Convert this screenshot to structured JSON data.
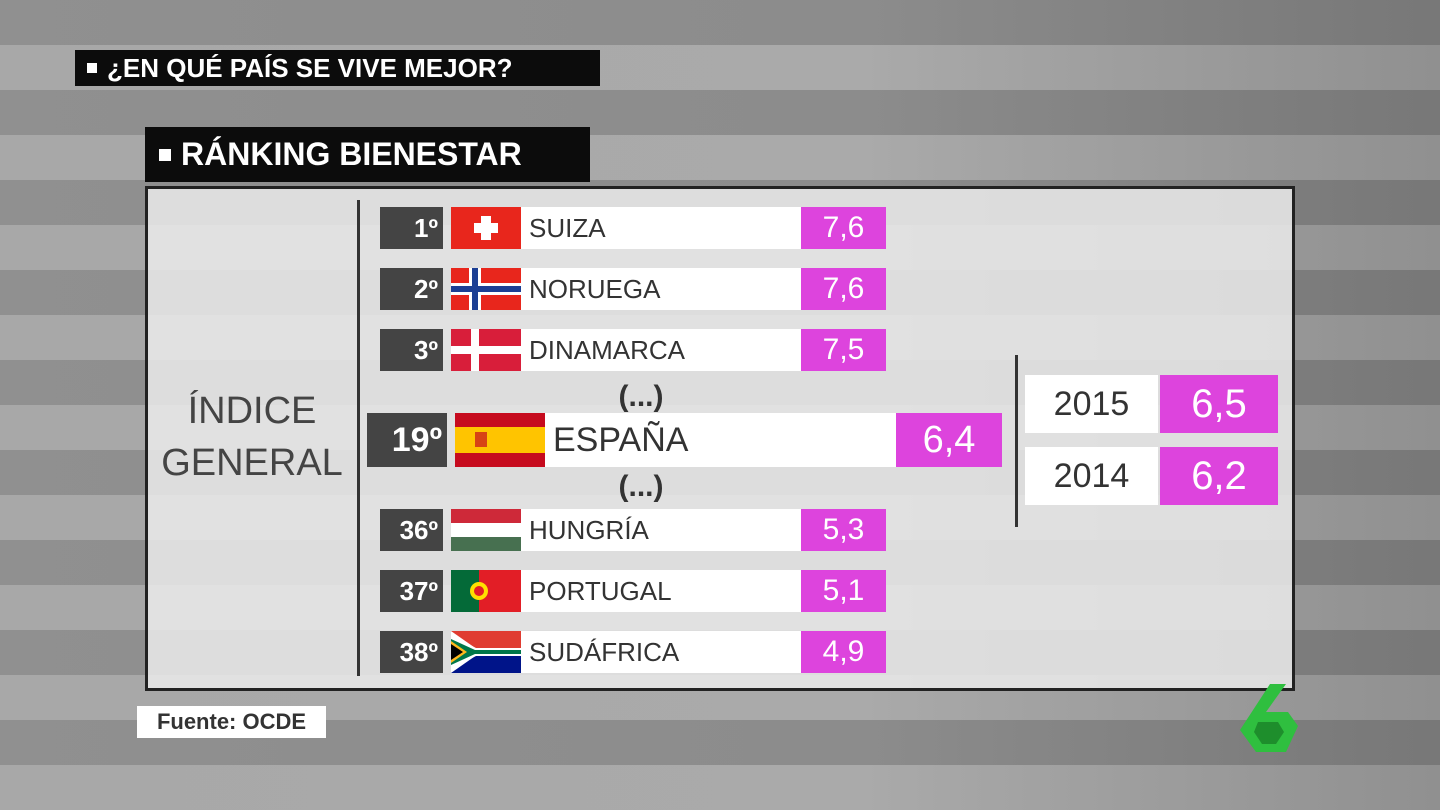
{
  "header": {
    "title": "¿EN QUÉ PAÍS SE VIVE MEJOR?",
    "subtitle": "RÁNKING BIENESTAR"
  },
  "side_label": [
    "ÍNDICE",
    "GENERAL"
  ],
  "rows": [
    {
      "rank": "1º",
      "country": "SUIZA",
      "value": "7,6"
    },
    {
      "rank": "2º",
      "country": "NORUEGA",
      "value": "7,6"
    },
    {
      "rank": "3º",
      "country": "DINAMARCA",
      "value": "7,5"
    },
    {
      "rank": "19º",
      "country": "ESPAÑA",
      "value": "6,4"
    },
    {
      "rank": "36º",
      "country": "HUNGRÍA",
      "value": "5,3"
    },
    {
      "rank": "37º",
      "country": "PORTUGAL",
      "value": "5,1"
    },
    {
      "rank": "38º",
      "country": "SUDÁFRICA",
      "value": "4,9"
    }
  ],
  "ellipsis": [
    "(...)",
    "(...)"
  ],
  "years": [
    {
      "year": "2015",
      "value": "6,5"
    },
    {
      "year": "2014",
      "value": "6,2"
    }
  ],
  "source": "Fuente: OCDE"
}
